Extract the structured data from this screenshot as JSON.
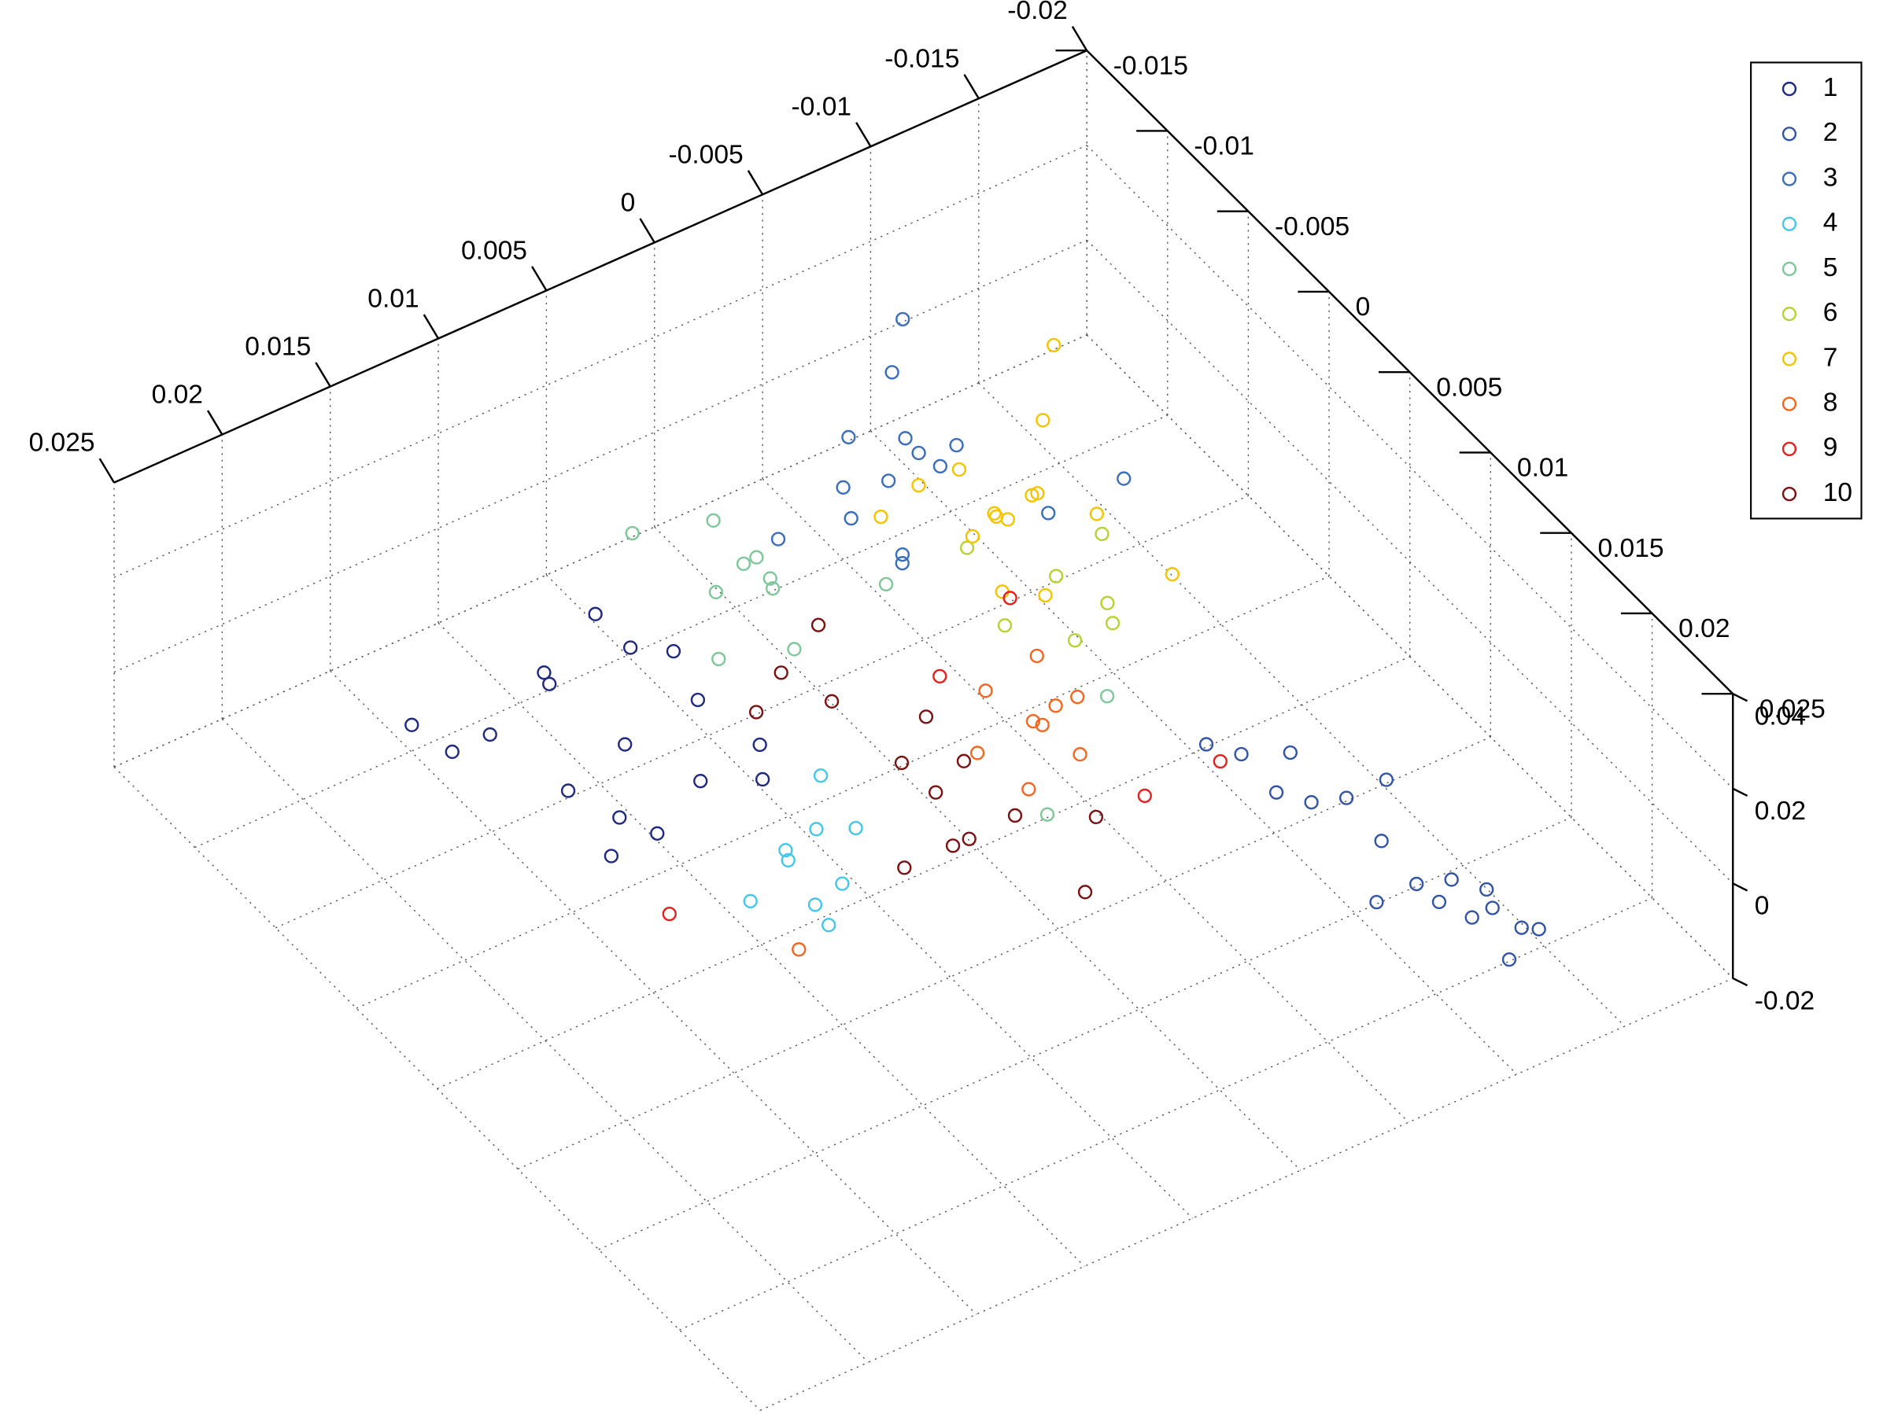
{
  "chart_data": {
    "type": "scatter3d",
    "xlim": [
      -0.02,
      0.025
    ],
    "xticks": [
      -0.02,
      -0.015,
      -0.01,
      -0.005,
      0,
      0.005,
      0.01,
      0.015,
      0.02,
      0.025
    ],
    "ylim": [
      -0.015,
      0.025
    ],
    "yticks": [
      -0.015,
      -0.01,
      -0.005,
      0,
      0.005,
      0.01,
      0.015,
      0.02,
      0.025
    ],
    "zlim": [
      -0.02,
      0.04
    ],
    "zticks": [
      -0.02,
      0,
      0.02,
      0.04
    ],
    "grid": true,
    "legend": "upper right",
    "series": [
      {
        "name": "1",
        "color": "#1f2a80",
        "x": [
          0.0125,
          0.0165,
          0.0145,
          0.0105,
          0.0085,
          0.0135,
          0.0115,
          0.0155,
          0.0095,
          0.0175,
          0.0125,
          0.014,
          0.011,
          0.019,
          0.008,
          0.015,
          0.012
        ],
        "y": [
          -0.0001,
          -0.0031,
          -0.0021,
          0.0019,
          0.0029,
          0.0009,
          -0.0011,
          0.0004,
          0.0004,
          -0.0041,
          0.0019,
          -0.0031,
          0.0009,
          -0.0046,
          0.0024,
          0.0024,
          -0.0026
        ],
        "z": [
          0.01,
          0.01,
          0.02,
          0.005,
          0.012,
          0,
          0.025,
          0.008,
          0.015,
          0.005,
          -0.002,
          0.018,
          0.03,
          0.012,
          0.002,
          0,
          0.028
        ]
      },
      {
        "name": "2",
        "color": "#3355a8",
        "x": [
          -0.0061,
          -0.0066,
          -0.0071,
          -0.0076,
          -0.0081,
          -0.0086,
          -0.0091,
          -0.0096,
          -0.0101,
          -0.0106,
          -0.0108,
          -0.008,
          -0.0092,
          -0.0098,
          -0.0104,
          -0.007,
          -0.01,
          -0.0094
        ],
        "y": [
          0.011,
          0.0125,
          0.014,
          0.0155,
          0.017,
          0.0185,
          0.02,
          0.0215,
          0.023,
          0.0245,
          0.0253,
          0.019,
          0.018,
          0.0225,
          0.024,
          0.015,
          0.0235,
          0.021
        ],
        "z": [
          0.01,
          0.012,
          0.008,
          0.01,
          0.015,
          0.01,
          0.005,
          0.01,
          0.012,
          0.008,
          0.01,
          0,
          0.02,
          0.005,
          0,
          0.02,
          0.01,
          0.004
        ]
      },
      {
        "name": "3",
        "color": "#3b6fba",
        "x": [
          -0.0044,
          -0.003,
          -0.0055,
          -0.004,
          -0.006,
          -0.002,
          -0.005,
          -0.0035,
          -0.007,
          -0.012,
          -0.01,
          -0.0025,
          -0.0065,
          0.001,
          -0.008
        ],
        "y": [
          -0.0064,
          -0.007,
          -0.006,
          -0.005,
          -0.0075,
          -0.0055,
          -0.004,
          -0.008,
          -0.009,
          -0.002,
          -0.004,
          -0.003,
          -0.005,
          -0.006,
          -0.011
        ],
        "z": [
          0.01,
          0.02,
          0.015,
          0,
          0.012,
          0.01,
          0.02,
          0.005,
          0.03,
          0.01,
          0,
          0.008,
          0.018,
          0.01,
          0.01
        ]
      },
      {
        "name": "4",
        "color": "#44c7e8",
        "x": [
          0.0091,
          0.01,
          0.0085,
          0.011,
          0.008,
          0.0095,
          0.012,
          0.0075,
          0.0105
        ],
        "y": [
          0.0072,
          0.0065,
          0.008,
          0.008,
          0.006,
          0.0085,
          0.007,
          0.0075,
          0.009
        ],
        "z": [
          0.01,
          0.005,
          0,
          0.01,
          0.015,
          -0.005,
          0,
          0.008,
          0.003
        ]
      },
      {
        "name": "5",
        "color": "#7ec89a",
        "x": [
          0.0029,
          0.004,
          0.002,
          0.005,
          0.001,
          0.0035,
          0.007,
          0.0025,
          -0.001,
          0.006,
          -0.006,
          0.002
        ],
        "y": [
          -0.0056,
          -0.006,
          -0.005,
          -0.0045,
          -0.0065,
          -0.004,
          -0.007,
          -0.003,
          -0.002,
          -0.003,
          0.005,
          0.012
        ],
        "z": [
          0.01,
          0.02,
          0.005,
          0.012,
          0,
          0.018,
          0.02,
          0,
          0.01,
          0.005,
          0,
          0.015
        ]
      },
      {
        "name": "6",
        "color": "#b5d432",
        "x": [
          -0.0067,
          -0.005,
          -0.008,
          -0.006,
          -0.004,
          -0.009,
          -0.007
        ],
        "y": [
          0.0009,
          0.0,
          0.002,
          0.003,
          -0.001,
          0.001,
          0.004
        ],
        "z": [
          0.01,
          0,
          0.02,
          0.005,
          0.015,
          0,
          0.01
        ]
      },
      {
        "name": "7",
        "color": "#f5c400",
        "x": [
          -0.0067,
          -0.0055,
          -0.008,
          -0.006,
          -0.0075,
          -0.009,
          -0.005,
          -0.007,
          -0.0085,
          -0.01,
          -0.004,
          -0.011,
          -0.0065,
          -0.003,
          -0.012
        ],
        "y": [
          -0.0028,
          -0.0035,
          -0.002,
          -0.0015,
          -0.004,
          -0.003,
          -0.002,
          -0.001,
          -0.0045,
          -0.001,
          -0.004,
          -0.005,
          0.0005,
          -0.005,
          0.001
        ],
        "z": [
          0.01,
          0.02,
          0.015,
          0,
          0.005,
          0.025,
          0.012,
          0.02,
          0,
          0.01,
          0.018,
          0.03,
          0.005,
          0.01,
          0
        ]
      },
      {
        "name": "8",
        "color": "#f26722",
        "x": [
          -0.0013,
          -0.002,
          -0.0005,
          -0.0025,
          0.0,
          -0.0035,
          -0.001,
          -0.003,
          0.0015,
          0.012
        ],
        "y": [
          0.0067,
          0.006,
          0.0075,
          0.008,
          0.0055,
          0.0065,
          0.0085,
          0.005,
          0.007,
          0.01
        ],
        "z": [
          0.01,
          0.02,
          0,
          0.005,
          0.015,
          0.01,
          0.02,
          0,
          0.01,
          0
        ]
      },
      {
        "name": "9",
        "color": "#e4211e",
        "x": [
          -0.006,
          0.001,
          -0.004,
          0.015,
          -0.003
        ],
        "y": [
          0.012,
          0.004,
          0.01,
          0.006,
          0.003
        ],
        "z": [
          0.01,
          0.015,
          0,
          0,
          0.02
        ]
      },
      {
        "name": "10",
        "color": "#7d1212",
        "x": [
          0.0041,
          0.003,
          0.005,
          0.0035,
          0.0045,
          0.0025,
          0.006,
          0.002,
          0.0052,
          0.004,
          0.0065,
          0.0045,
          0.001,
          -0.001
        ],
        "y": [
          0.0079,
          0.0085,
          0.007,
          0.0065,
          0.0095,
          0.0075,
          0.0085,
          0.01,
          -0.0002,
          0.0005,
          0.0,
          0.002,
          0.013,
          0.011
        ],
        "z": [
          0.01,
          0,
          0.015,
          0.02,
          0.005,
          0.012,
          0,
          0.008,
          0.01,
          0.02,
          0.005,
          0.01,
          0,
          0.005
        ]
      }
    ]
  }
}
